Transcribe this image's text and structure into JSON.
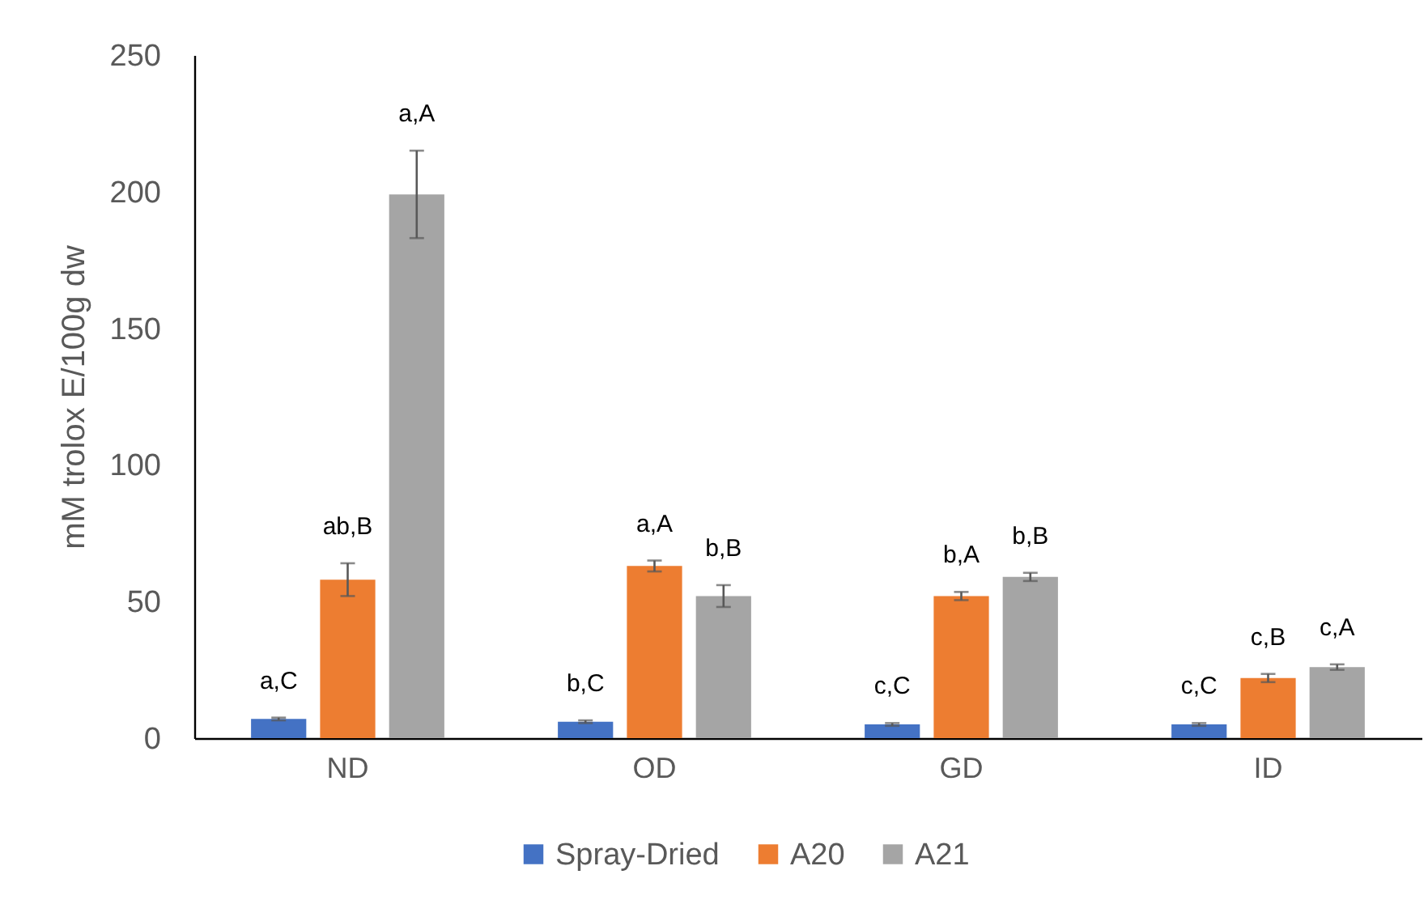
{
  "chart_data": {
    "type": "bar",
    "ylabel": "mM trolox E/100g dw",
    "categories": [
      "ND",
      "OD",
      "GD",
      "ID"
    ],
    "series": [
      {
        "name": "Spray-Dried",
        "color": "#4472c4",
        "values": [
          7,
          6,
          5,
          5
        ],
        "errors": [
          0.5,
          0.5,
          0.5,
          0.5
        ],
        "value_labels": [
          "a,C",
          "b,C",
          "c,C",
          "c,C"
        ]
      },
      {
        "name": "A20",
        "color": "#ed7d31",
        "values": [
          58,
          63,
          52,
          22
        ],
        "errors": [
          6,
          2,
          1.5,
          1.5
        ],
        "value_labels": [
          "ab,B",
          "a,A",
          "b,A",
          "c,B"
        ]
      },
      {
        "name": "A21",
        "color": "#a5a5a5",
        "values": [
          199,
          52,
          59,
          26
        ],
        "errors": [
          16,
          4,
          1.5,
          1
        ],
        "value_labels": [
          "a,A",
          "b,B",
          "b,B",
          "c,A"
        ]
      }
    ],
    "ylim": [
      0,
      250
    ],
    "yticks": [
      0,
      50,
      100,
      150,
      200,
      250
    ],
    "grid": false,
    "legend": "bottom"
  }
}
